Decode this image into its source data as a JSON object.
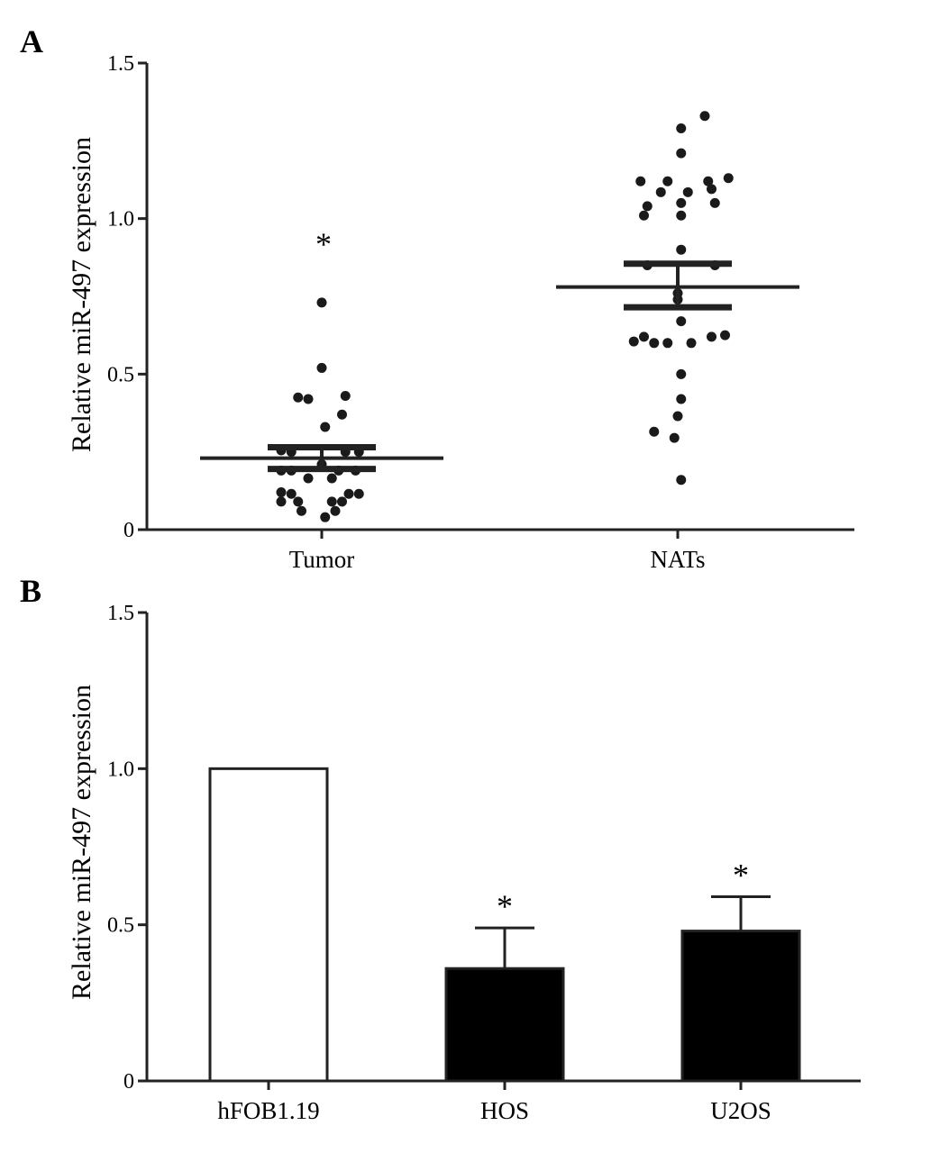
{
  "chart_data": [
    {
      "panel": "A",
      "type": "scatter",
      "ylabel": "Relative  miR-497 expression",
      "ylim": [
        0,
        1.5
      ],
      "yticks": [
        {
          "value": 0,
          "label": "0"
        },
        {
          "value": 0.5,
          "label": "0.5"
        },
        {
          "value": 1.0,
          "label": "1.0"
        },
        {
          "value": 1.5,
          "label": "1.5"
        }
      ],
      "categories": [
        "Tumor",
        "NATs"
      ],
      "groups": [
        {
          "category": "Tumor",
          "mean": 0.23,
          "sem_low": 0.195,
          "sem_high": 0.265,
          "significance": "*",
          "points": [
            [
              0,
              0.73
            ],
            [
              0,
              0.52
            ],
            [
              -0.35,
              0.425
            ],
            [
              -0.2,
              0.42
            ],
            [
              0.35,
              0.43
            ],
            [
              0.3,
              0.37
            ],
            [
              0.05,
              0.33
            ],
            [
              -0.6,
              0.255
            ],
            [
              -0.45,
              0.25
            ],
            [
              0.35,
              0.25
            ],
            [
              0.55,
              0.25
            ],
            [
              0.0,
              0.21
            ],
            [
              -0.6,
              0.19
            ],
            [
              -0.45,
              0.19
            ],
            [
              0.25,
              0.19
            ],
            [
              0.5,
              0.19
            ],
            [
              -0.2,
              0.165
            ],
            [
              0.15,
              0.165
            ],
            [
              -0.6,
              0.12
            ],
            [
              -0.45,
              0.115
            ],
            [
              0.4,
              0.115
            ],
            [
              0.55,
              0.115
            ],
            [
              -0.6,
              0.09
            ],
            [
              -0.35,
              0.09
            ],
            [
              0.15,
              0.09
            ],
            [
              0.3,
              0.09
            ],
            [
              -0.3,
              0.06
            ],
            [
              0.2,
              0.06
            ],
            [
              0.05,
              0.04
            ]
          ]
        },
        {
          "category": "NATs",
          "mean": 0.78,
          "sem_low": 0.715,
          "sem_high": 0.855,
          "significance": "",
          "points": [
            [
              0.4,
              1.33
            ],
            [
              0.05,
              1.29
            ],
            [
              0.05,
              1.21
            ],
            [
              -0.55,
              1.12
            ],
            [
              0.45,
              1.12
            ],
            [
              -0.15,
              1.12
            ],
            [
              0.75,
              1.13
            ],
            [
              -0.25,
              1.085
            ],
            [
              0.15,
              1.085
            ],
            [
              0.5,
              1.095
            ],
            [
              -0.45,
              1.04
            ],
            [
              0.05,
              1.05
            ],
            [
              0.55,
              1.05
            ],
            [
              -0.5,
              1.01
            ],
            [
              0.05,
              1.01
            ],
            [
              0.05,
              0.9
            ],
            [
              -0.45,
              0.85
            ],
            [
              0.55,
              0.85
            ],
            [
              0.0,
              0.76
            ],
            [
              0.0,
              0.74
            ],
            [
              0.05,
              0.67
            ],
            [
              -0.5,
              0.62
            ],
            [
              0.5,
              0.62
            ],
            [
              0.7,
              0.625
            ],
            [
              -0.65,
              0.605
            ],
            [
              -0.35,
              0.6
            ],
            [
              -0.15,
              0.6
            ],
            [
              0.2,
              0.6
            ],
            [
              0.05,
              0.5
            ],
            [
              0.05,
              0.42
            ],
            [
              0.0,
              0.365
            ],
            [
              -0.35,
              0.315
            ],
            [
              -0.05,
              0.295
            ],
            [
              0.05,
              0.16
            ]
          ]
        }
      ]
    },
    {
      "panel": "B",
      "type": "bar",
      "ylabel": "Relative  miR-497 expression",
      "ylim": [
        0,
        1.5
      ],
      "yticks": [
        {
          "value": 0,
          "label": "0"
        },
        {
          "value": 0.5,
          "label": "0.5"
        },
        {
          "value": 1.0,
          "label": "1.0"
        },
        {
          "value": 1.5,
          "label": "1.5"
        }
      ],
      "categories": [
        "hFOB1.19",
        "HOS",
        "U2OS"
      ],
      "values": [
        1.0,
        0.36,
        0.48
      ],
      "errors": [
        0,
        0.13,
        0.11
      ],
      "fills": [
        "#ffffff",
        "#000000",
        "#000000"
      ],
      "significance": [
        "",
        "*",
        "*"
      ]
    }
  ]
}
